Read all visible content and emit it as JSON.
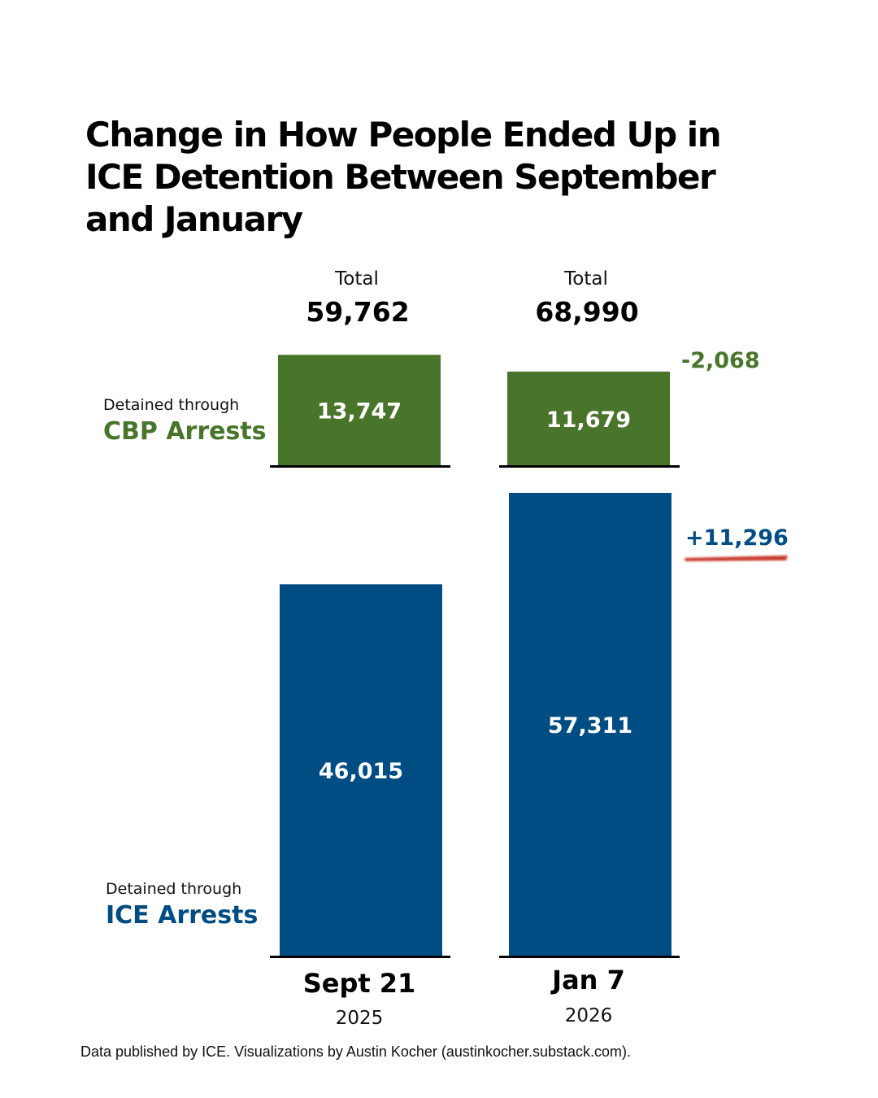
{
  "title_lines": [
    "Change in How People Ended Up in",
    "ICE Detention Between September",
    "and January"
  ],
  "colors": {
    "cbp": "#48752a",
    "ice": "#004d84",
    "baseline": "#000000",
    "underline": "#c8392b",
    "bar_label": "#ffffff"
  },
  "chart_data": {
    "type": "bar",
    "stacking": "split-stack",
    "categories": [
      "Sept 21",
      "Jan 7"
    ],
    "category_years": [
      "2025",
      "2026"
    ],
    "series": [
      {
        "name": "CBP Arrests",
        "label_prefix": "Detained through",
        "values": [
          13747,
          11679
        ],
        "value_labels": [
          "13,747",
          "11,679"
        ]
      },
      {
        "name": "ICE Arrests",
        "label_prefix": "Detained through",
        "values": [
          46015,
          57311
        ],
        "value_labels": [
          "46,015",
          "57,311"
        ]
      }
    ],
    "totals": {
      "label": "Total",
      "values": [
        59762,
        68990
      ],
      "value_labels": [
        "59,762",
        "68,990"
      ]
    },
    "changes": {
      "cbp": {
        "value": -2068,
        "label": "-2,068"
      },
      "ice": {
        "value": 11296,
        "label": "+11,296"
      }
    }
  },
  "source": "Data published by ICE. Visualizations by Austin Kocher (austinkocher.substack.com)."
}
